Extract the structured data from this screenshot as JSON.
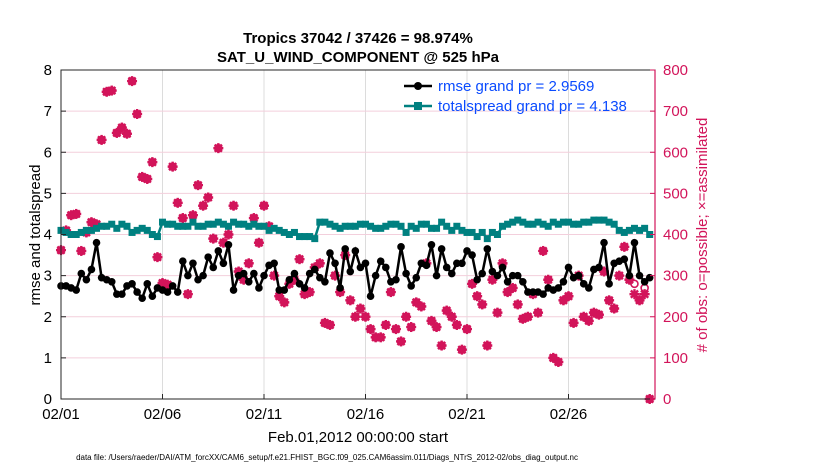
{
  "chart_data": {
    "type": "line",
    "title": [
      "Tropics 37042 / 37426 = 98.974%",
      "SAT_U_WIND_COMPONENT @ 525 hPa"
    ],
    "xlabel": "Feb.01,2012 00:00:00 start",
    "ylabel": "rmse and totalspread",
    "ylabel_right": "# of obs: o=possible; ×=assimilated",
    "footer": "data file: /Users/raeder/DAI/ATM_forcXX/CAM6_setup/f.e21.FHIST_BGC.f09_025.CAM6assim.011/Diags_NTrS_2012-02/obs_diag_output.nc",
    "ylim": [
      0,
      8
    ],
    "ylim_right": [
      0,
      800
    ],
    "yticks": [
      "0",
      "1",
      "2",
      "3",
      "4",
      "5",
      "6",
      "7",
      "8"
    ],
    "yticks_right": [
      "0",
      "100",
      "200",
      "300",
      "400",
      "500",
      "600",
      "700",
      "800"
    ],
    "xticks": [
      "02/01",
      "02/06",
      "02/11",
      "02/16",
      "02/21",
      "02/26"
    ],
    "grid": true,
    "legend_placement": "top-right",
    "colors": {
      "rmse": "#000000",
      "spread": "#008080",
      "obs": "#d2145a",
      "legend_text": "#0a4bff"
    },
    "x": [
      "02/01 00",
      "02/01 06",
      "02/01 12",
      "02/01 18",
      "02/02 00",
      "02/02 06",
      "02/02 12",
      "02/02 18",
      "02/03 00",
      "02/03 06",
      "02/03 12",
      "02/03 18",
      "02/04 00",
      "02/04 06",
      "02/04 12",
      "02/04 18",
      "02/05 00",
      "02/05 06",
      "02/05 12",
      "02/05 18",
      "02/06 00",
      "02/06 06",
      "02/06 12",
      "02/06 18",
      "02/07 00",
      "02/07 06",
      "02/07 12",
      "02/07 18",
      "02/08 00",
      "02/08 06",
      "02/08 12",
      "02/08 18",
      "02/09 00",
      "02/09 06",
      "02/09 12",
      "02/09 18",
      "02/10 00",
      "02/10 06",
      "02/10 12",
      "02/10 18",
      "02/11 00",
      "02/11 06",
      "02/11 12",
      "02/11 18",
      "02/12 00",
      "02/12 06",
      "02/12 12",
      "02/12 18",
      "02/13 00",
      "02/13 06",
      "02/13 12",
      "02/13 18",
      "02/14 00",
      "02/14 06",
      "02/14 12",
      "02/14 18",
      "02/15 00",
      "02/15 06",
      "02/15 12",
      "02/15 18",
      "02/16 00",
      "02/16 06",
      "02/16 12",
      "02/16 18",
      "02/17 00",
      "02/17 06",
      "02/17 12",
      "02/17 18",
      "02/18 00",
      "02/18 06",
      "02/18 12",
      "02/18 18",
      "02/19 00",
      "02/19 06",
      "02/19 12",
      "02/19 18",
      "02/20 00",
      "02/20 06",
      "02/20 12",
      "02/20 18",
      "02/21 00",
      "02/21 06",
      "02/21 12",
      "02/21 18",
      "02/22 00",
      "02/22 06",
      "02/22 12",
      "02/22 18",
      "02/23 00",
      "02/23 06",
      "02/23 12",
      "02/23 18",
      "02/24 00",
      "02/24 06",
      "02/24 12",
      "02/24 18",
      "02/25 00",
      "02/25 06",
      "02/25 12",
      "02/25 18",
      "02/26 00",
      "02/26 06",
      "02/26 12",
      "02/26 18",
      "02/27 00",
      "02/27 06",
      "02/27 12",
      "02/27 18",
      "02/28 00",
      "02/28 06",
      "02/28 12",
      "02/28 18",
      "02/29 00",
      "02/29 06",
      "02/29 12",
      "02/29 18",
      "03/01 00"
    ],
    "series": [
      {
        "name": "rmse grand pr = 2.9569",
        "axis": "left",
        "values": [
          2.75,
          2.75,
          2.7,
          2.65,
          3.05,
          2.9,
          3.15,
          3.8,
          2.95,
          2.9,
          2.85,
          2.55,
          2.55,
          2.75,
          2.8,
          2.6,
          2.45,
          2.8,
          2.5,
          2.7,
          2.65,
          2.6,
          2.75,
          2.6,
          3.35,
          3.0,
          3.3,
          2.9,
          3.0,
          3.45,
          3.2,
          3.6,
          3.3,
          3.75,
          2.65,
          3.0,
          3.05,
          2.85,
          3.05,
          2.7,
          3.0,
          3.25,
          3.3,
          2.65,
          2.65,
          2.9,
          3.05,
          2.8,
          2.7,
          3.05,
          3.15,
          2.95,
          2.85,
          3.55,
          3.3,
          2.7,
          3.65,
          3.1,
          3.6,
          3.2,
          3.3,
          2.5,
          3.0,
          3.35,
          3.2,
          2.85,
          2.9,
          3.7,
          3.05,
          2.75,
          2.95,
          3.3,
          3.25,
          3.75,
          3.0,
          3.65,
          3.2,
          3.05,
          3.3,
          3.3,
          3.6,
          3.5,
          2.9,
          3.05,
          3.65,
          3.1,
          3.0,
          3.2,
          2.85,
          3.0,
          3.0,
          2.85,
          2.6,
          2.6,
          2.6,
          2.55,
          2.7,
          2.65,
          2.7,
          2.85,
          3.2,
          2.95,
          3.0,
          2.8,
          2.7,
          3.15,
          3.2,
          3.8,
          2.8,
          3.3,
          3.35,
          3.4,
          3.0,
          3.8,
          3.0,
          2.85,
          2.95
        ]
      },
      {
        "name": "totalspread grand pr = 4.138",
        "axis": "left",
        "values": [
          4.1,
          4.05,
          4.0,
          4.0,
          4.05,
          4.1,
          4.1,
          4.15,
          4.2,
          4.2,
          4.25,
          4.15,
          4.25,
          4.2,
          4.05,
          4.1,
          4.15,
          4.1,
          4.0,
          3.95,
          4.3,
          4.25,
          4.25,
          4.2,
          4.2,
          4.2,
          4.3,
          4.2,
          4.2,
          4.25,
          4.25,
          4.3,
          4.25,
          4.2,
          4.3,
          4.25,
          4.25,
          4.2,
          4.25,
          4.2,
          4.2,
          4.1,
          4.15,
          4.1,
          4.05,
          4.0,
          4.05,
          3.95,
          3.95,
          3.95,
          3.9,
          4.3,
          4.3,
          4.25,
          4.2,
          4.15,
          4.2,
          4.2,
          4.2,
          4.25,
          4.25,
          4.2,
          4.15,
          4.15,
          4.2,
          4.25,
          4.25,
          4.2,
          4.05,
          4.2,
          4.15,
          4.25,
          4.25,
          4.15,
          4.15,
          4.3,
          4.2,
          4.1,
          4.2,
          4.1,
          4.05,
          4.05,
          3.95,
          4.05,
          3.9,
          4.05,
          4.0,
          4.2,
          4.25,
          4.3,
          4.35,
          4.3,
          4.25,
          4.25,
          4.3,
          4.25,
          4.2,
          4.3,
          4.25,
          4.3,
          4.3,
          4.25,
          4.25,
          4.3,
          4.3,
          4.35,
          4.35,
          4.35,
          4.3,
          4.25,
          4.1,
          4.05,
          4.1,
          4.15,
          4.1,
          4.15,
          4.0
        ]
      },
      {
        "name": "possible",
        "axis": "right",
        "marker": "o",
        "values": [
          362,
          410,
          447,
          450,
          360,
          405,
          430,
          425,
          630,
          747,
          750,
          647,
          660,
          645,
          773,
          693,
          540,
          535,
          576,
          345,
          282,
          278,
          565,
          477,
          440,
          255,
          447,
          520,
          470,
          490,
          390,
          610,
          380,
          400,
          470,
          310,
          290,
          330,
          440,
          380,
          470,
          420,
          300,
          250,
          235,
          280,
          290,
          340,
          255,
          260,
          320,
          330,
          185,
          180,
          300,
          260,
          350,
          240,
          200,
          220,
          200,
          170,
          150,
          150,
          180,
          260,
          170,
          140,
          200,
          175,
          235,
          225,
          330,
          190,
          175,
          130,
          215,
          200,
          180,
          120,
          170,
          280,
          250,
          230,
          130,
          290,
          210,
          330,
          260,
          270,
          230,
          195,
          200,
          255,
          210,
          360,
          290,
          100,
          90,
          240,
          250,
          185,
          300,
          200,
          190,
          210,
          205,
          310,
          240,
          220,
          300,
          370,
          290,
          280,
          240,
          270,
          0
        ]
      },
      {
        "name": "assimilated",
        "axis": "right",
        "marker": "*",
        "values": [
          362,
          410,
          447,
          450,
          360,
          405,
          430,
          425,
          630,
          747,
          750,
          647,
          660,
          645,
          773,
          693,
          540,
          535,
          576,
          345,
          282,
          278,
          565,
          477,
          440,
          255,
          447,
          520,
          470,
          490,
          390,
          610,
          380,
          400,
          470,
          310,
          290,
          330,
          440,
          380,
          470,
          420,
          300,
          250,
          235,
          280,
          290,
          340,
          255,
          260,
          320,
          330,
          185,
          180,
          300,
          260,
          350,
          240,
          200,
          220,
          200,
          170,
          150,
          150,
          180,
          260,
          170,
          140,
          200,
          175,
          235,
          225,
          330,
          190,
          175,
          130,
          215,
          200,
          180,
          120,
          170,
          280,
          250,
          230,
          130,
          290,
          210,
          330,
          260,
          270,
          230,
          195,
          200,
          255,
          210,
          360,
          290,
          100,
          90,
          240,
          250,
          185,
          300,
          200,
          190,
          210,
          205,
          310,
          240,
          220,
          300,
          370,
          290,
          255,
          240,
          255,
          0
        ]
      }
    ]
  }
}
